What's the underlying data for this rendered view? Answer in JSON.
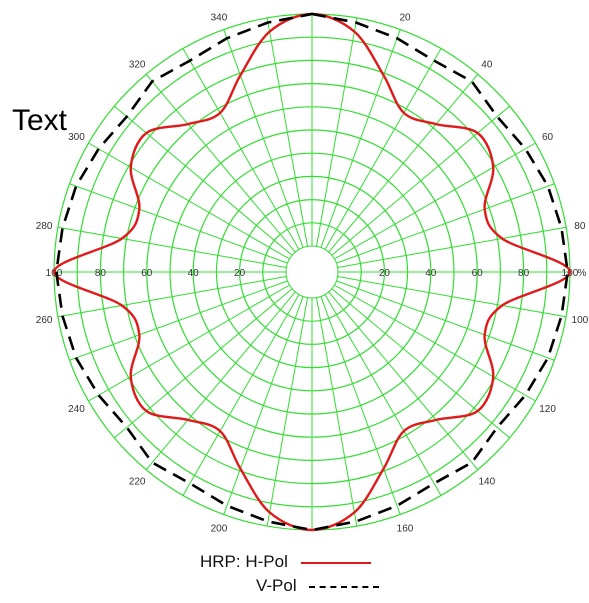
{
  "overlay_text": "Text",
  "chart_data": {
    "type": "polar-line",
    "title": "",
    "radial_unit": "%",
    "radial_ticks": [
      20,
      40,
      60,
      80,
      100
    ],
    "radial_max": 100,
    "angle_ticks": [
      20,
      40,
      60,
      80,
      100,
      120,
      140,
      160,
      200,
      220,
      240,
      260,
      280,
      300,
      320,
      340
    ],
    "angle_step_minor": 10,
    "series": [
      {
        "name": "HRP: H-Pol",
        "style": "solid",
        "color": "#e01a1a",
        "angles_deg": [
          0,
          10,
          20,
          30,
          40,
          50,
          60,
          70,
          80,
          90,
          100,
          110,
          120,
          130,
          140,
          150,
          160,
          170,
          180,
          190,
          200,
          210,
          220,
          230,
          240,
          250,
          260,
          270,
          280,
          290,
          300,
          310,
          320,
          330,
          340,
          350
        ],
        "values": [
          100,
          94,
          79,
          68,
          72,
          82,
          79,
          68,
          72,
          100,
          72,
          68,
          79,
          82,
          72,
          68,
          79,
          94,
          100,
          94,
          79,
          68,
          72,
          82,
          79,
          68,
          72,
          100,
          72,
          68,
          79,
          82,
          72,
          68,
          79,
          94
        ]
      },
      {
        "name": "V-Pol",
        "style": "dashed",
        "color": "#000000",
        "angles_deg": [
          0,
          10,
          20,
          30,
          40,
          50,
          60,
          70,
          80,
          90,
          100,
          110,
          120,
          130,
          140,
          150,
          160,
          170,
          180,
          190,
          200,
          210,
          220,
          230,
          240,
          250,
          260,
          270,
          280,
          290,
          300,
          310,
          320,
          330,
          340,
          350
        ],
        "values": [
          100,
          98,
          96,
          94,
          96,
          93,
          95,
          97,
          98,
          99,
          98,
          97,
          95,
          93,
          96,
          94,
          96,
          98,
          100,
          98,
          96,
          94,
          96,
          93,
          95,
          97,
          98,
          99,
          98,
          97,
          95,
          93,
          96,
          94,
          96,
          98
        ]
      }
    ],
    "legend": {
      "title": "HRP:",
      "entries": [
        "H-Pol",
        "V-Pol"
      ],
      "position": "bottom-center"
    },
    "grid": true,
    "grid_color": "#33dd33"
  }
}
